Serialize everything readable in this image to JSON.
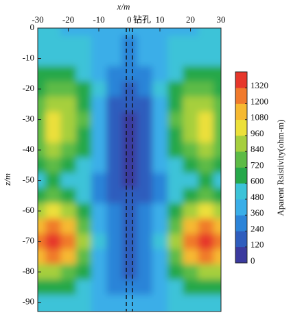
{
  "chart_data": {
    "type": "contour",
    "x_label": "x/m",
    "y_label": "z/m",
    "x": [
      -30,
      -25,
      -20,
      -15,
      -10,
      -5,
      0,
      5,
      10,
      15,
      20,
      25,
      30
    ],
    "y": [
      0,
      -5,
      -10,
      -15,
      -20,
      -25,
      -30,
      -35,
      -40,
      -45,
      -50,
      -55,
      -60,
      -65,
      -70,
      -75,
      -80,
      -85,
      -90
    ],
    "values": [
      [
        500,
        480,
        470,
        450,
        420,
        400,
        380,
        400,
        420,
        450,
        470,
        480,
        500
      ],
      [
        520,
        520,
        500,
        480,
        430,
        380,
        350,
        380,
        430,
        480,
        500,
        520,
        520
      ],
      [
        560,
        580,
        560,
        520,
        450,
        360,
        320,
        360,
        450,
        520,
        560,
        580,
        560
      ],
      [
        600,
        650,
        640,
        580,
        470,
        330,
        250,
        330,
        470,
        580,
        640,
        650,
        600
      ],
      [
        680,
        760,
        740,
        640,
        480,
        280,
        180,
        280,
        480,
        640,
        740,
        760,
        680
      ],
      [
        760,
        880,
        860,
        700,
        470,
        230,
        120,
        230,
        470,
        700,
        860,
        880,
        760
      ],
      [
        800,
        960,
        920,
        720,
        450,
        190,
        80,
        190,
        450,
        720,
        920,
        960,
        800
      ],
      [
        800,
        980,
        920,
        700,
        430,
        150,
        60,
        150,
        430,
        700,
        920,
        980,
        800
      ],
      [
        740,
        880,
        820,
        640,
        400,
        130,
        50,
        130,
        400,
        640,
        820,
        880,
        740
      ],
      [
        640,
        720,
        680,
        560,
        360,
        130,
        60,
        130,
        360,
        560,
        680,
        720,
        640
      ],
      [
        560,
        600,
        580,
        500,
        340,
        170,
        90,
        170,
        340,
        500,
        580,
        600,
        560
      ],
      [
        680,
        720,
        660,
        520,
        340,
        230,
        170,
        230,
        340,
        520,
        660,
        720,
        680
      ],
      [
        900,
        1000,
        920,
        680,
        420,
        280,
        220,
        280,
        420,
        680,
        920,
        1000,
        900
      ],
      [
        1150,
        1300,
        1150,
        820,
        460,
        300,
        220,
        300,
        460,
        820,
        1150,
        1300,
        1150
      ],
      [
        1250,
        1400,
        1250,
        880,
        480,
        300,
        200,
        300,
        480,
        880,
        1250,
        1400,
        1250
      ],
      [
        1100,
        1200,
        1080,
        780,
        450,
        290,
        180,
        290,
        450,
        780,
        1080,
        1200,
        1100
      ],
      [
        850,
        900,
        820,
        620,
        420,
        300,
        160,
        300,
        420,
        620,
        820,
        900,
        850
      ],
      [
        640,
        640,
        600,
        520,
        400,
        330,
        280,
        330,
        400,
        520,
        600,
        640,
        640
      ],
      [
        560,
        540,
        520,
        480,
        420,
        380,
        360,
        380,
        420,
        480,
        520,
        540,
        560
      ]
    ],
    "xlim": [
      -30,
      30
    ],
    "ylim": [
      -93,
      0
    ],
    "xticks": [
      -30,
      -20,
      -10,
      0,
      10,
      20,
      30
    ],
    "yticks": [
      0,
      -10,
      -20,
      -30,
      -40,
      -50,
      -60,
      -70,
      -80,
      -90
    ],
    "borehole": {
      "label": "钻孔",
      "x": [
        -1,
        1
      ]
    },
    "colorbar": {
      "label": "Aparent Rsistivity(ohm-m)",
      "clim": [
        0,
        1440
      ],
      "ticks": [
        0,
        120,
        240,
        360,
        480,
        600,
        720,
        840,
        960,
        1080,
        1200,
        1320
      ],
      "colors": [
        "#3b3a9e",
        "#2f5dbd",
        "#2c84d8",
        "#3aaee8",
        "#3cc3d8",
        "#26a84a",
        "#5dbb46",
        "#a6cf3e",
        "#ece03a",
        "#f6b931",
        "#f07a2c",
        "#e6372b"
      ]
    }
  }
}
